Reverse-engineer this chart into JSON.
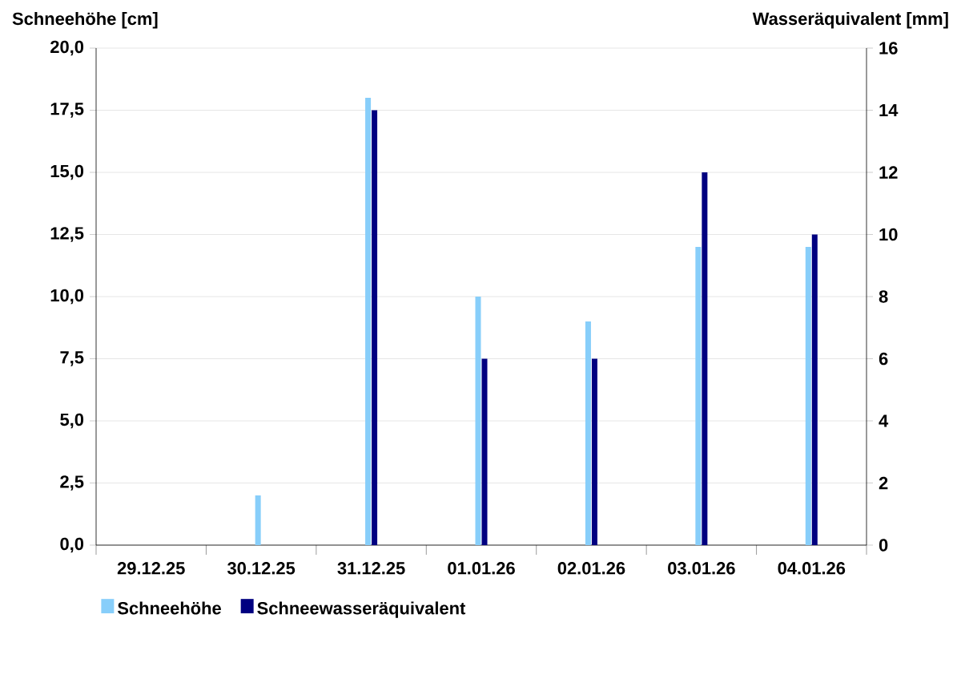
{
  "chart_data": {
    "type": "bar",
    "ylabel": "Schneehöhe [cm]",
    "y2label": "Wasseräquivalent [mm]",
    "categories": [
      "29.12.25",
      "30.12.25",
      "31.12.25",
      "01.01.26",
      "02.01.26",
      "03.01.26",
      "04.01.26"
    ],
    "series": [
      {
        "name": "Schneehöhe",
        "color": "#87cefa",
        "values": [
          null,
          2.0,
          18.0,
          10.0,
          9.0,
          12.0,
          12.0
        ]
      },
      {
        "name": "Schneewasseräquivalent",
        "color": "#000080",
        "axis": "y2",
        "values": [
          null,
          null,
          14,
          6,
          6,
          12,
          10
        ]
      }
    ],
    "ylim": [
      0,
      20
    ],
    "yticks": [
      {
        "value": 0,
        "label": "0,0"
      },
      {
        "value": 2.5,
        "label": "2,5"
      },
      {
        "value": 5,
        "label": "5,0"
      },
      {
        "value": 7.5,
        "label": "7,5"
      },
      {
        "value": 10,
        "label": "10,0"
      },
      {
        "value": 12.5,
        "label": "12,5"
      },
      {
        "value": 15,
        "label": "15,0"
      },
      {
        "value": 17.5,
        "label": "17,5"
      },
      {
        "value": 20,
        "label": "20,0"
      }
    ],
    "y2lim": [
      0,
      16
    ],
    "y2ticks": [
      0,
      2,
      4,
      6,
      8,
      10,
      12,
      14,
      16
    ],
    "grid": "y",
    "legend": "bottom"
  }
}
